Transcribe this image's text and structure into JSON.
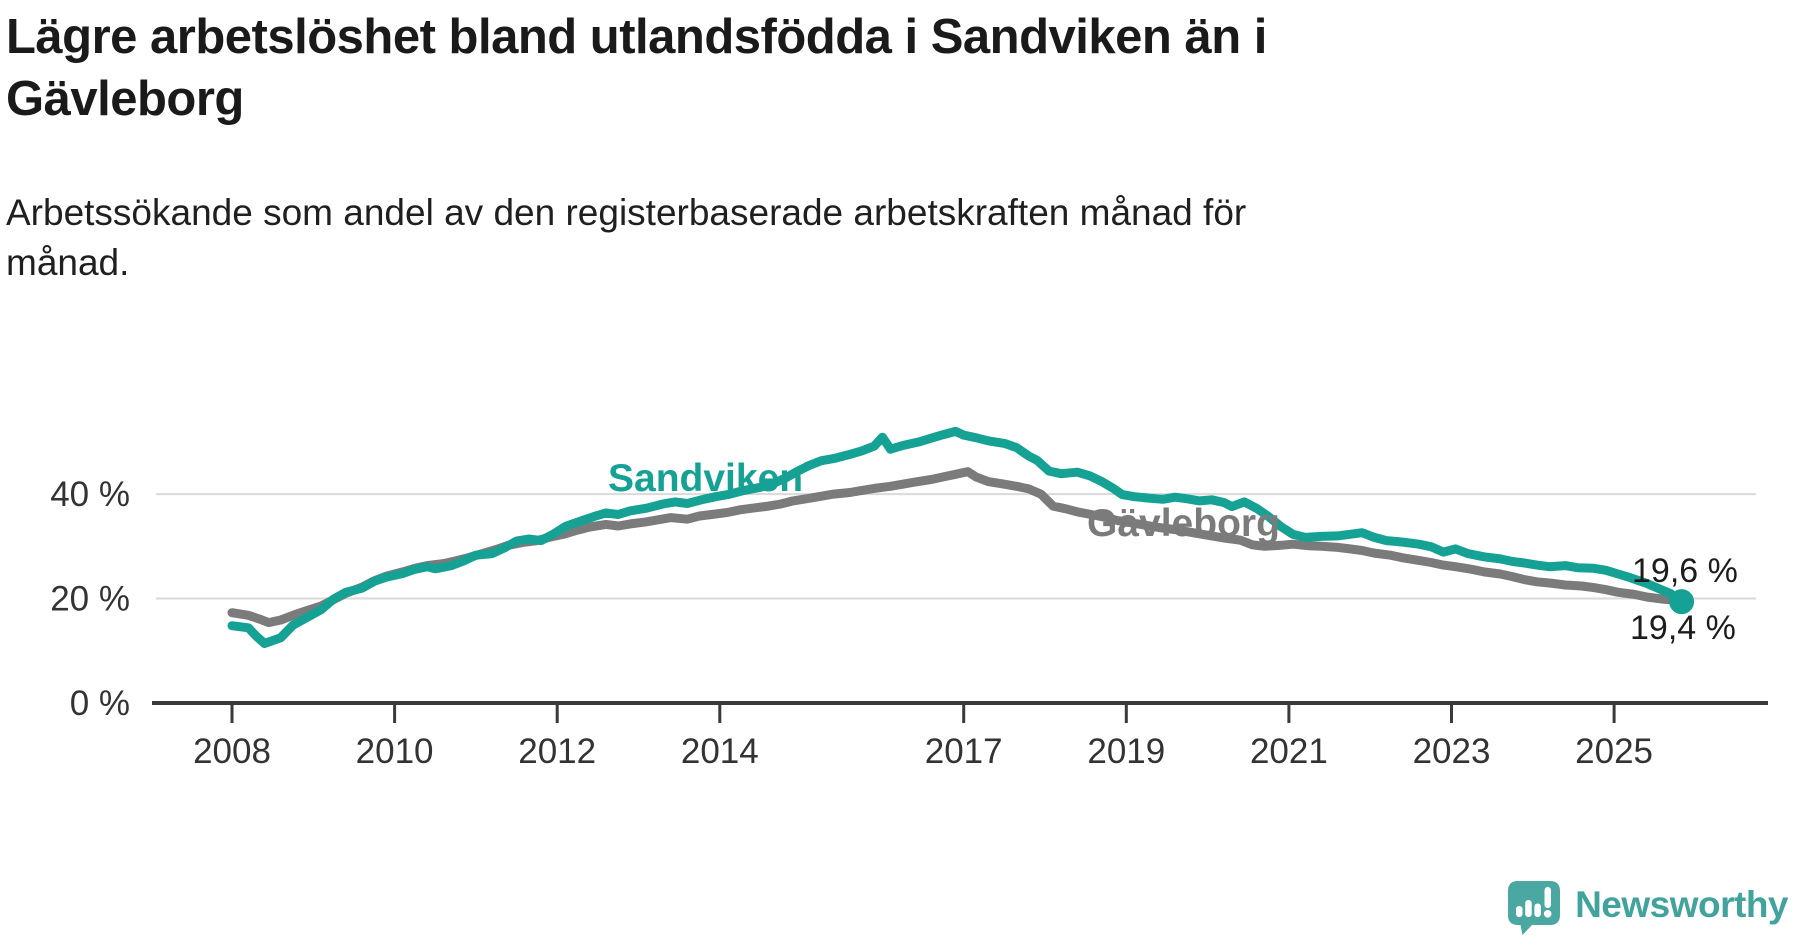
{
  "header": {
    "title_lines": [
      "Lägre arbetslöshet bland utlandsfödda i Sandviken än i",
      "Gävleborg"
    ],
    "subtitle_lines": [
      "Arbetssökande som andel av den registerbaserade arbetskraften månad för",
      "månad."
    ]
  },
  "branding": {
    "logo_text": "Newsworthy",
    "logo_icon": "speech-bubble-bar-chart-icon",
    "logo_icon_color": "#4ba7a1",
    "logo_text_color": "#41a39c"
  },
  "chart_data": {
    "type": "line",
    "unit": "%",
    "grid": true,
    "x_ticks": [
      2008,
      2010,
      2012,
      2014,
      2017,
      2019,
      2021,
      2023,
      2025
    ],
    "y_ticks": [
      {
        "value": 0,
        "label": "0 %"
      },
      {
        "value": 20,
        "label": "20 %"
      },
      {
        "value": 40,
        "label": "40 %"
      }
    ],
    "ylim": [
      0,
      60
    ],
    "x_range_years": [
      2008.0,
      2025.83
    ],
    "axis_color": "#3a3a3a",
    "grid_color": "#dadada",
    "series": [
      {
        "name": "Gävleborg",
        "color": "#7b7b7b",
        "end_label": "19,6 %",
        "end_value": 19.6,
        "points": [
          [
            2008.0,
            17.3
          ],
          [
            2008.2,
            16.8
          ],
          [
            2008.35,
            16.0
          ],
          [
            2008.45,
            15.4
          ],
          [
            2008.6,
            15.9
          ],
          [
            2008.75,
            16.8
          ],
          [
            2008.9,
            17.6
          ],
          [
            2009.1,
            18.6
          ],
          [
            2009.25,
            19.8
          ],
          [
            2009.4,
            21.0
          ],
          [
            2009.6,
            22.2
          ],
          [
            2009.75,
            23.4
          ],
          [
            2009.9,
            24.3
          ],
          [
            2010.1,
            25.1
          ],
          [
            2010.25,
            25.8
          ],
          [
            2010.4,
            26.3
          ],
          [
            2010.6,
            26.7
          ],
          [
            2010.75,
            27.2
          ],
          [
            2010.9,
            27.8
          ],
          [
            2011.1,
            28.7
          ],
          [
            2011.25,
            29.4
          ],
          [
            2011.4,
            30.2
          ],
          [
            2011.6,
            30.8
          ],
          [
            2011.75,
            31.1
          ],
          [
            2011.9,
            31.7
          ],
          [
            2012.1,
            32.4
          ],
          [
            2012.25,
            33.1
          ],
          [
            2012.4,
            33.7
          ],
          [
            2012.6,
            34.2
          ],
          [
            2012.75,
            33.9
          ],
          [
            2012.9,
            34.3
          ],
          [
            2013.1,
            34.7
          ],
          [
            2013.25,
            35.1
          ],
          [
            2013.4,
            35.5
          ],
          [
            2013.6,
            35.2
          ],
          [
            2013.75,
            35.8
          ],
          [
            2013.9,
            36.1
          ],
          [
            2014.1,
            36.5
          ],
          [
            2014.25,
            37.0
          ],
          [
            2014.4,
            37.3
          ],
          [
            2014.6,
            37.7
          ],
          [
            2014.75,
            38.1
          ],
          [
            2014.9,
            38.7
          ],
          [
            2015.1,
            39.2
          ],
          [
            2015.25,
            39.6
          ],
          [
            2015.4,
            40.0
          ],
          [
            2015.6,
            40.3
          ],
          [
            2015.75,
            40.7
          ],
          [
            2015.9,
            41.1
          ],
          [
            2016.1,
            41.5
          ],
          [
            2016.25,
            41.9
          ],
          [
            2016.4,
            42.3
          ],
          [
            2016.6,
            42.8
          ],
          [
            2016.75,
            43.3
          ],
          [
            2016.9,
            43.8
          ],
          [
            2017.05,
            44.3
          ],
          [
            2017.15,
            43.3
          ],
          [
            2017.3,
            42.4
          ],
          [
            2017.5,
            41.9
          ],
          [
            2017.65,
            41.5
          ],
          [
            2017.8,
            41.0
          ],
          [
            2017.95,
            40.0
          ],
          [
            2018.1,
            37.7
          ],
          [
            2018.25,
            37.2
          ],
          [
            2018.4,
            36.6
          ],
          [
            2018.6,
            36.0
          ],
          [
            2018.75,
            35.5
          ],
          [
            2018.9,
            34.9
          ],
          [
            2019.1,
            34.4
          ],
          [
            2019.25,
            34.0
          ],
          [
            2019.4,
            33.6
          ],
          [
            2019.6,
            33.2
          ],
          [
            2019.75,
            32.8
          ],
          [
            2019.9,
            32.4
          ],
          [
            2020.05,
            32.0
          ],
          [
            2020.2,
            31.6
          ],
          [
            2020.4,
            31.2
          ],
          [
            2020.55,
            30.3
          ],
          [
            2020.7,
            30.0
          ],
          [
            2020.9,
            30.2
          ],
          [
            2021.05,
            30.4
          ],
          [
            2021.25,
            30.1
          ],
          [
            2021.4,
            30.0
          ],
          [
            2021.6,
            29.8
          ],
          [
            2021.75,
            29.5
          ],
          [
            2021.9,
            29.2
          ],
          [
            2022.05,
            28.7
          ],
          [
            2022.25,
            28.3
          ],
          [
            2022.4,
            27.8
          ],
          [
            2022.6,
            27.3
          ],
          [
            2022.75,
            26.9
          ],
          [
            2022.9,
            26.4
          ],
          [
            2023.05,
            26.1
          ],
          [
            2023.25,
            25.6
          ],
          [
            2023.4,
            25.1
          ],
          [
            2023.6,
            24.7
          ],
          [
            2023.75,
            24.2
          ],
          [
            2023.9,
            23.6
          ],
          [
            2024.05,
            23.2
          ],
          [
            2024.25,
            22.9
          ],
          [
            2024.4,
            22.6
          ],
          [
            2024.6,
            22.4
          ],
          [
            2024.75,
            22.1
          ],
          [
            2024.9,
            21.7
          ],
          [
            2025.05,
            21.2
          ],
          [
            2025.25,
            20.8
          ],
          [
            2025.4,
            20.3
          ],
          [
            2025.6,
            19.9
          ],
          [
            2025.75,
            19.7
          ],
          [
            2025.83,
            19.6
          ]
        ]
      },
      {
        "name": "Sandviken",
        "color": "#16a195",
        "end_label": "19,4 %",
        "end_value": 19.4,
        "end_dot": true,
        "points": [
          [
            2008.0,
            14.8
          ],
          [
            2008.2,
            14.4
          ],
          [
            2008.3,
            12.8
          ],
          [
            2008.4,
            11.4
          ],
          [
            2008.6,
            12.5
          ],
          [
            2008.75,
            14.9
          ],
          [
            2008.9,
            16.2
          ],
          [
            2009.1,
            17.9
          ],
          [
            2009.25,
            19.9
          ],
          [
            2009.4,
            21.2
          ],
          [
            2009.6,
            22.0
          ],
          [
            2009.75,
            23.3
          ],
          [
            2009.9,
            24.1
          ],
          [
            2010.1,
            24.8
          ],
          [
            2010.25,
            25.6
          ],
          [
            2010.4,
            26.1
          ],
          [
            2010.5,
            25.7
          ],
          [
            2010.7,
            26.3
          ],
          [
            2010.85,
            27.2
          ],
          [
            2011.0,
            28.3
          ],
          [
            2011.2,
            28.6
          ],
          [
            2011.35,
            29.7
          ],
          [
            2011.5,
            31.0
          ],
          [
            2011.65,
            31.4
          ],
          [
            2011.8,
            31.1
          ],
          [
            2011.95,
            32.3
          ],
          [
            2012.1,
            33.8
          ],
          [
            2012.3,
            34.9
          ],
          [
            2012.45,
            35.7
          ],
          [
            2012.6,
            36.4
          ],
          [
            2012.75,
            36.1
          ],
          [
            2012.9,
            36.8
          ],
          [
            2013.1,
            37.3
          ],
          [
            2013.3,
            38.1
          ],
          [
            2013.45,
            38.5
          ],
          [
            2013.6,
            38.2
          ],
          [
            2013.8,
            39.0
          ],
          [
            2013.95,
            39.5
          ],
          [
            2014.1,
            39.9
          ],
          [
            2014.3,
            40.7
          ],
          [
            2014.5,
            41.3
          ],
          [
            2014.65,
            42.0
          ],
          [
            2014.8,
            43.0
          ],
          [
            2014.95,
            44.3
          ],
          [
            2015.1,
            45.5
          ],
          [
            2015.25,
            46.4
          ],
          [
            2015.4,
            46.8
          ],
          [
            2015.6,
            47.6
          ],
          [
            2015.75,
            48.3
          ],
          [
            2015.9,
            49.2
          ],
          [
            2016.0,
            50.9
          ],
          [
            2016.1,
            48.6
          ],
          [
            2016.25,
            49.3
          ],
          [
            2016.45,
            50.0
          ],
          [
            2016.6,
            50.7
          ],
          [
            2016.75,
            51.4
          ],
          [
            2016.9,
            52.0
          ],
          [
            2017.0,
            51.3
          ],
          [
            2017.15,
            50.8
          ],
          [
            2017.3,
            50.2
          ],
          [
            2017.5,
            49.7
          ],
          [
            2017.65,
            48.9
          ],
          [
            2017.8,
            47.3
          ],
          [
            2017.9,
            46.5
          ],
          [
            2018.05,
            44.4
          ],
          [
            2018.2,
            43.9
          ],
          [
            2018.4,
            44.2
          ],
          [
            2018.55,
            43.5
          ],
          [
            2018.7,
            42.4
          ],
          [
            2018.85,
            41.0
          ],
          [
            2018.95,
            39.9
          ],
          [
            2019.1,
            39.5
          ],
          [
            2019.3,
            39.2
          ],
          [
            2019.45,
            39.0
          ],
          [
            2019.6,
            39.4
          ],
          [
            2019.75,
            39.1
          ],
          [
            2019.9,
            38.7
          ],
          [
            2020.05,
            38.9
          ],
          [
            2020.2,
            38.4
          ],
          [
            2020.3,
            37.6
          ],
          [
            2020.45,
            38.5
          ],
          [
            2020.6,
            37.3
          ],
          [
            2020.75,
            35.7
          ],
          [
            2020.9,
            33.8
          ],
          [
            2021.05,
            32.3
          ],
          [
            2021.2,
            31.7
          ],
          [
            2021.4,
            31.9
          ],
          [
            2021.6,
            32.0
          ],
          [
            2021.75,
            32.3
          ],
          [
            2021.9,
            32.6
          ],
          [
            2022.05,
            31.7
          ],
          [
            2022.2,
            31.1
          ],
          [
            2022.4,
            30.8
          ],
          [
            2022.6,
            30.4
          ],
          [
            2022.75,
            29.9
          ],
          [
            2022.9,
            28.9
          ],
          [
            2023.05,
            29.5
          ],
          [
            2023.2,
            28.6
          ],
          [
            2023.4,
            28.0
          ],
          [
            2023.6,
            27.6
          ],
          [
            2023.75,
            27.1
          ],
          [
            2023.9,
            26.8
          ],
          [
            2024.05,
            26.4
          ],
          [
            2024.2,
            26.1
          ],
          [
            2024.4,
            26.3
          ],
          [
            2024.55,
            25.9
          ],
          [
            2024.75,
            25.8
          ],
          [
            2024.9,
            25.4
          ],
          [
            2025.05,
            24.7
          ],
          [
            2025.2,
            24.0
          ],
          [
            2025.4,
            22.9
          ],
          [
            2025.55,
            21.9
          ],
          [
            2025.7,
            20.9
          ],
          [
            2025.79,
            19.0
          ],
          [
            2025.83,
            19.4
          ]
        ]
      }
    ]
  }
}
